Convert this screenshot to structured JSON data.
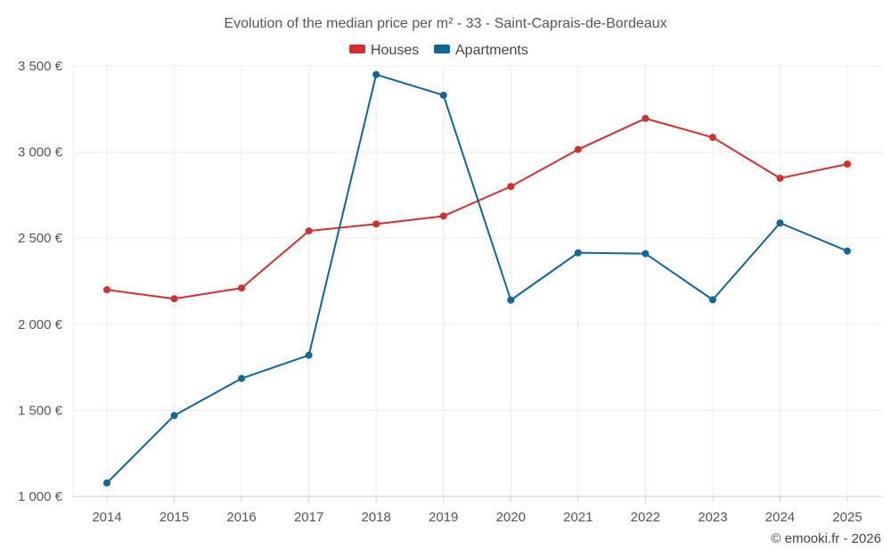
{
  "chart_data": {
    "type": "line",
    "title": "Evolution of the median price per m² - 33 - Saint-Caprais-de-Bordeaux",
    "categories": [
      "2014",
      "2015",
      "2016",
      "2017",
      "2018",
      "2019",
      "2020",
      "2021",
      "2022",
      "2023",
      "2024",
      "2025"
    ],
    "series": [
      {
        "name": "Houses",
        "color": "#d32f2f",
        "values": [
          2200,
          2148,
          2210,
          2542,
          2582,
          2628,
          2800,
          3015,
          3195,
          3085,
          2848,
          2930
        ]
      },
      {
        "name": "Apartments",
        "color": "#0d6797",
        "values": [
          1078,
          1470,
          1685,
          1820,
          3450,
          3330,
          2140,
          2415,
          2410,
          2142,
          2588,
          2425
        ]
      }
    ],
    "ylim": [
      1000,
      3500
    ],
    "yticks": [
      1000,
      1500,
      2000,
      2500,
      3000,
      3500
    ],
    "ytick_labels": [
      "1 000 €",
      "1 500 €",
      "2 000 €",
      "2 500 €",
      "3 000 €",
      "3 500 €"
    ],
    "xlabel": "",
    "ylabel": "",
    "legend_position": "top-center",
    "grid": true
  },
  "credit": "© emooki.fr - 2026"
}
